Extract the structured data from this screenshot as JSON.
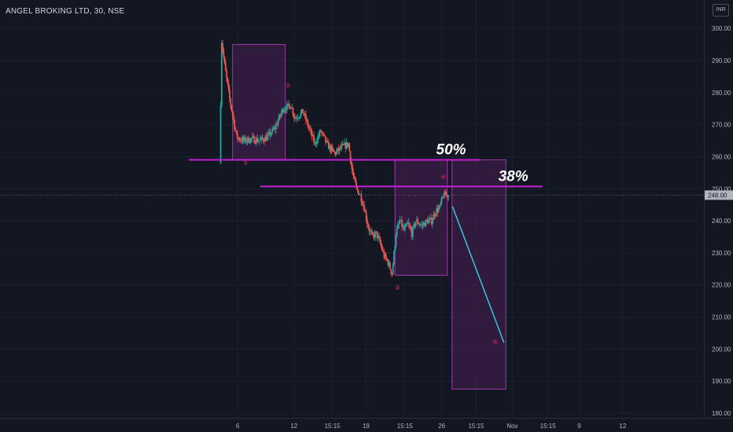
{
  "header": {
    "symbol_title": "ANGEL BROKING LTD, 30, NSE",
    "currency": "INR"
  },
  "colors": {
    "background": "#131722",
    "up_candle": "#26a69a",
    "down_candle": "#ef5350",
    "level_line": "#c41fd6",
    "box_fill": "#4a1f52",
    "box_border": "#9a3aa8",
    "projection_line": "#2fd4e4",
    "wave_label": "#e0306c"
  },
  "chart_data": {
    "type": "candlestick",
    "title": "ANGEL BROKING LTD, 30, NSE",
    "ylim": [
      180,
      302
    ],
    "y_ticks": [
      180,
      190,
      200,
      210,
      220,
      230,
      240,
      250,
      260,
      270,
      280,
      290,
      300
    ],
    "y_tick_labels": [
      "180.00",
      "190.00",
      "200.00",
      "210.00",
      "220.00",
      "230.00",
      "240.00",
      "250.00",
      "260.00",
      "270.00",
      "280.00",
      "290.00",
      "300.00"
    ],
    "x_tick_labels": [
      "6",
      "12",
      "15:15",
      "19",
      "15:15",
      "26",
      "15:15",
      "Nov",
      "15:15",
      "9",
      "12"
    ],
    "x_tick_index": [
      4.3,
      18.5,
      28.2,
      36.7,
      46.5,
      55.8,
      64.5,
      73.6,
      82.6,
      90.5,
      101.5
    ],
    "x_range": [
      -16,
      119
    ],
    "last_price": 248.0,
    "last_price_label": "248.00",
    "price_path": [
      [
        0,
        258
      ],
      [
        0.5,
        296
      ],
      [
        1.3,
        288
      ],
      [
        2.5,
        278
      ],
      [
        4.3,
        266
      ],
      [
        6,
        265
      ],
      [
        8,
        265.5
      ],
      [
        10,
        265
      ],
      [
        12,
        266
      ],
      [
        14,
        269
      ],
      [
        16,
        275
      ],
      [
        18,
        276
      ],
      [
        19,
        272
      ],
      [
        21,
        274
      ],
      [
        22.5,
        269
      ],
      [
        24,
        264
      ],
      [
        25.5,
        268
      ],
      [
        27,
        264
      ],
      [
        29,
        261
      ],
      [
        31,
        263
      ],
      [
        32.5,
        264
      ],
      [
        33.5,
        255
      ],
      [
        34.5,
        250
      ],
      [
        35.5,
        248
      ],
      [
        36.5,
        244
      ],
      [
        37.5,
        238
      ],
      [
        38.5,
        235
      ],
      [
        39.5,
        236
      ],
      [
        40.5,
        233
      ],
      [
        41.5,
        229
      ],
      [
        42.5,
        227
      ],
      [
        43.5,
        223.5
      ],
      [
        44.5,
        236
      ],
      [
        45.5,
        240
      ],
      [
        46.5,
        237
      ],
      [
        47.5,
        239
      ],
      [
        48.5,
        236
      ],
      [
        49.5,
        240
      ],
      [
        51,
        238.5
      ],
      [
        52.5,
        240
      ],
      [
        53.5,
        240
      ],
      [
        54.5,
        243
      ],
      [
        55.5,
        244
      ],
      [
        56.5,
        248
      ],
      [
        57.5,
        248
      ]
    ],
    "levels": [
      {
        "label": "50%",
        "price": 259,
        "x_start": -8,
        "x_end": 65.5
      },
      {
        "label": "38%",
        "price": 250.7,
        "x_start": 10,
        "x_end": 81.2
      }
    ],
    "boxes": [
      {
        "x0": 3,
        "x1": 16.3,
        "y0": 259,
        "y1": 295
      },
      {
        "x0": 44,
        "x1": 57.2,
        "y0": 223,
        "y1": 259
      },
      {
        "x0": 58.4,
        "x1": 72,
        "y0": 187.5,
        "y1": 259
      }
    ],
    "projection": [
      [
        58.5,
        244.5
      ],
      [
        71.5,
        202
      ]
    ],
    "wave_labels": [
      {
        "label": "①",
        "x": 6.3,
        "y": 257.5
      },
      {
        "label": "②",
        "x": 17,
        "y": 281.5
      },
      {
        "label": "③",
        "x": 44.6,
        "y": 218.5
      },
      {
        "label": "④",
        "x": 56.2,
        "y": 253
      },
      {
        "label": "⑤",
        "x": 69.3,
        "y": 201.5
      }
    ]
  }
}
